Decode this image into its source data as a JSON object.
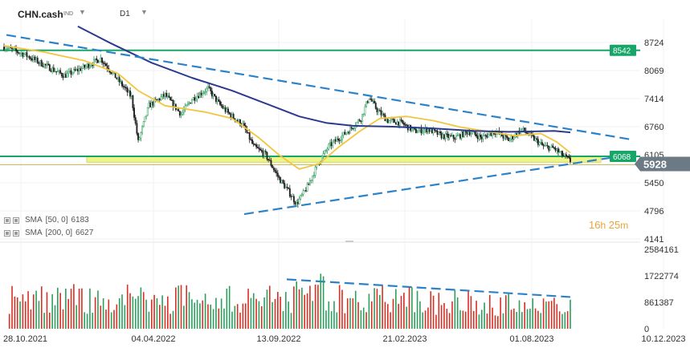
{
  "header": {
    "symbol": "CHN.cash",
    "exchange": "IND",
    "timeframe": "D1"
  },
  "indicators": [
    {
      "label": "SMA",
      "params": "[50, 0]",
      "value": "6183"
    },
    {
      "label": "SMA",
      "params": "[200, 0]",
      "value": "6627"
    }
  ],
  "countdown": {
    "hours": "16",
    "h_unit": "h",
    "minutes": "25",
    "m_unit": "m"
  },
  "price_badges": {
    "level_high": "8542",
    "level_low": "6068",
    "current": "5928"
  },
  "colors": {
    "up_candle": "#2e9e5e",
    "down_candle": "#222222",
    "vol_up": "#2e9e5e",
    "vol_down": "#d93025",
    "sma50": "#f2c53d",
    "sma200": "#2b3a8f",
    "trendline": "#2c82c9",
    "horizontal": "#18a568",
    "zone_fill": "#eef48a",
    "current_badge": "#6c7a86"
  },
  "chart_data": {
    "type": "candlestick",
    "price_axis": {
      "min": 4141,
      "max": 8724,
      "ticks": [
        8724,
        8069,
        7414,
        6760,
        6105,
        5450,
        4796,
        4141
      ]
    },
    "volume_axis": {
      "min": 0,
      "max": 2584161,
      "ticks": [
        2584161,
        1722774,
        861387,
        0
      ]
    },
    "x_ticks": [
      "28.10.2021",
      "04.04.2022",
      "13.09.2022",
      "21.02.2023",
      "01.08.2023",
      "10.12.2023"
    ],
    "horizontal_levels": [
      8542,
      6068
    ],
    "support_zone": [
      5930,
      6068
    ],
    "trendlines": [
      {
        "name": "upper",
        "from": [
          "28.10.2021",
          8900
        ],
        "to": [
          "10.12.2023",
          6460
        ]
      },
      {
        "name": "lower",
        "from": [
          "13.09.2022",
          4720
        ],
        "to": [
          "10.12.2023",
          6110
        ]
      },
      {
        "name": "volume",
        "from": [
          "13.09.2022",
          2000000
        ],
        "to": [
          "2023-11-20",
          250000
        ]
      }
    ],
    "price_path": [
      [
        0,
        8620
      ],
      [
        15,
        8450
      ],
      [
        30,
        8200
      ],
      [
        45,
        7950
      ],
      [
        60,
        8150
      ],
      [
        72,
        8350
      ],
      [
        85,
        7850
      ],
      [
        95,
        7450
      ],
      [
        100,
        6400
      ],
      [
        108,
        7250
      ],
      [
        120,
        7500
      ],
      [
        132,
        7050
      ],
      [
        140,
        7400
      ],
      [
        152,
        7650
      ],
      [
        160,
        7300
      ],
      [
        168,
        7050
      ],
      [
        178,
        6800
      ],
      [
        186,
        6300
      ],
      [
        195,
        6100
      ],
      [
        205,
        5550
      ],
      [
        212,
        5250
      ],
      [
        218,
        4960
      ],
      [
        226,
        5350
      ],
      [
        234,
        5900
      ],
      [
        242,
        6300
      ],
      [
        250,
        6500
      ],
      [
        258,
        6700
      ],
      [
        266,
        6950
      ],
      [
        272,
        7450
      ],
      [
        278,
        7150
      ],
      [
        286,
        6900
      ],
      [
        296,
        6850
      ],
      [
        306,
        6650
      ],
      [
        316,
        6700
      ],
      [
        326,
        6550
      ],
      [
        336,
        6500
      ],
      [
        346,
        6650
      ],
      [
        356,
        6500
      ],
      [
        366,
        6650
      ],
      [
        376,
        6450
      ],
      [
        386,
        6700
      ],
      [
        394,
        6500
      ],
      [
        402,
        6300
      ],
      [
        410,
        6250
      ],
      [
        416,
        6100
      ],
      [
        422,
        5960
      ]
    ],
    "sma50": [
      [
        0,
        8650
      ],
      [
        30,
        8500
      ],
      [
        60,
        8300
      ],
      [
        85,
        8000
      ],
      [
        100,
        7600
      ],
      [
        120,
        7250
      ],
      [
        150,
        7100
      ],
      [
        170,
        6950
      ],
      [
        190,
        6500
      ],
      [
        205,
        6100
      ],
      [
        220,
        5770
      ],
      [
        235,
        5900
      ],
      [
        250,
        6300
      ],
      [
        265,
        6650
      ],
      [
        280,
        6950
      ],
      [
        300,
        7000
      ],
      [
        320,
        6900
      ],
      [
        340,
        6750
      ],
      [
        360,
        6650
      ],
      [
        380,
        6550
      ],
      [
        400,
        6600
      ],
      [
        412,
        6400
      ],
      [
        422,
        6150
      ]
    ],
    "sma200": [
      [
        55,
        9100
      ],
      [
        80,
        8700
      ],
      [
        110,
        8250
      ],
      [
        140,
        7900
      ],
      [
        170,
        7600
      ],
      [
        195,
        7300
      ],
      [
        220,
        7000
      ],
      [
        240,
        6850
      ],
      [
        260,
        6780
      ],
      [
        290,
        6760
      ],
      [
        320,
        6720
      ],
      [
        350,
        6660
      ],
      [
        375,
        6640
      ],
      [
        395,
        6650
      ],
      [
        410,
        6660
      ],
      [
        422,
        6627
      ]
    ]
  }
}
